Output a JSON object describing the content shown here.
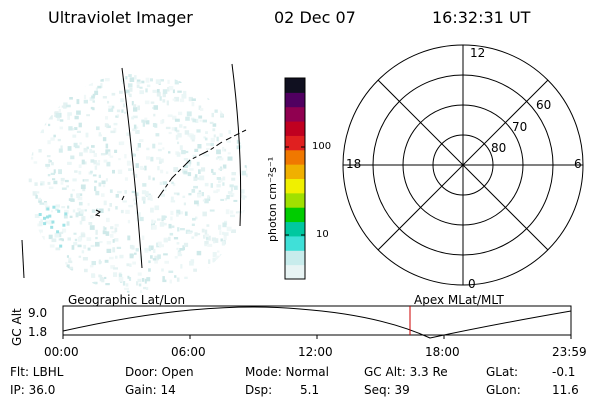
{
  "header": {
    "instrument": "Ultraviolet Imager",
    "date": "02 Dec 07",
    "time": "16:32:31 UT"
  },
  "colorbar": {
    "label": "photon cm⁻²s⁻¹",
    "tick_100": "100",
    "tick_10": "10",
    "scale": "log",
    "colors": [
      "#e8f4f4",
      "#c8ecec",
      "#40e0d8",
      "#00c8a0",
      "#00cc00",
      "#a0e000",
      "#f0f000",
      "#f0b000",
      "#f07800",
      "#e02020",
      "#c00020",
      "#900050",
      "#500060",
      "#101020"
    ]
  },
  "polar": {
    "mlt_top": "12",
    "mlt_bottom": "0",
    "mlt_left": "18",
    "mlt_right": "6",
    "lat_60": "60",
    "lat_70": "70",
    "lat_80": "80"
  },
  "timeline": {
    "ylabel": "GC Alt",
    "y_max": "9.0",
    "y_min": "1.8",
    "left_title": "Geographic Lat/Lon",
    "right_title": "Apex MLat/MLT",
    "ticks": [
      "00:00",
      "06:00",
      "12:00",
      "18:00",
      "23:59"
    ],
    "current_marker_color": "#cc0000"
  },
  "params": {
    "flt": "Flt: LBHL",
    "ip": "IP: 36.0",
    "door": "Door: Open",
    "gain": "Gain: 14",
    "mode": "Mode: Normal",
    "dsp_label": "Dsp:",
    "dsp_value": "5.1",
    "gc_alt": "GC Alt: 3.3 Re",
    "seq": "Seq: 39",
    "glat_label": "GLat:",
    "glat_value": "-0.1",
    "glon_label": "GLon:",
    "glon_value": "11.6"
  }
}
